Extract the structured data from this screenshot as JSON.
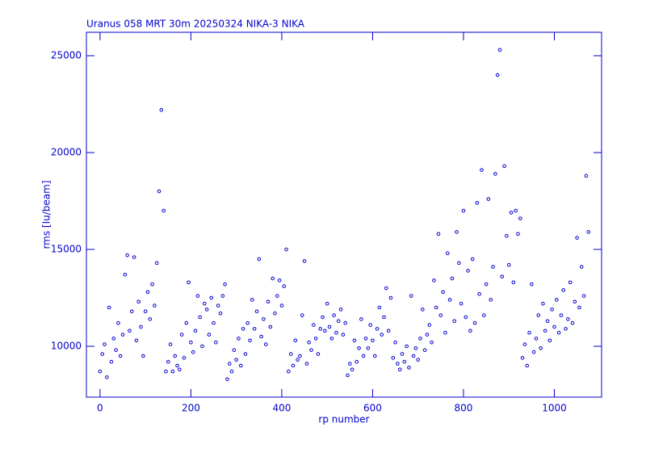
{
  "chart_data": {
    "type": "scatter",
    "title": "Uranus   058 MRT 30m  20250324 NIKA-3 NIKA",
    "x_label": "rp number",
    "y_label": "rms [Iu/beam]",
    "color": "#0000cc",
    "xlim": [
      -30,
      1104
    ],
    "ylim": [
      7375,
      26210
    ],
    "xticks": [
      0,
      200,
      400,
      600,
      800,
      1000
    ],
    "yticks": [
      10000,
      15000,
      20000,
      25000
    ],
    "x": [
      0,
      5,
      10,
      15,
      20,
      25,
      30,
      35,
      40,
      45,
      50,
      55,
      60,
      65,
      70,
      75,
      80,
      85,
      90,
      95,
      100,
      105,
      110,
      115,
      120,
      125,
      130,
      135,
      140,
      145,
      150,
      155,
      160,
      165,
      170,
      175,
      180,
      185,
      190,
      195,
      200,
      205,
      210,
      215,
      220,
      225,
      230,
      235,
      240,
      245,
      250,
      255,
      260,
      265,
      270,
      275,
      280,
      285,
      290,
      295,
      300,
      305,
      310,
      315,
      320,
      325,
      330,
      335,
      340,
      345,
      350,
      355,
      360,
      365,
      370,
      375,
      380,
      385,
      390,
      395,
      400,
      405,
      410,
      415,
      420,
      425,
      430,
      435,
      440,
      445,
      450,
      455,
      460,
      465,
      470,
      475,
      480,
      485,
      490,
      495,
      500,
      505,
      510,
      515,
      520,
      525,
      530,
      535,
      540,
      545,
      550,
      555,
      560,
      565,
      570,
      575,
      580,
      585,
      590,
      595,
      600,
      605,
      610,
      615,
      620,
      625,
      630,
      635,
      640,
      645,
      650,
      655,
      660,
      665,
      670,
      675,
      680,
      685,
      690,
      695,
      700,
      705,
      710,
      715,
      720,
      725,
      730,
      735,
      740,
      745,
      750,
      755,
      760,
      765,
      770,
      775,
      780,
      785,
      790,
      795,
      800,
      805,
      810,
      815,
      820,
      825,
      830,
      835,
      840,
      845,
      850,
      855,
      860,
      865,
      870,
      875,
      880,
      885,
      890,
      895,
      900,
      905,
      910,
      915,
      920,
      925,
      930,
      935,
      940,
      945,
      950,
      955,
      960,
      965,
      970,
      975,
      980,
      985,
      990,
      995,
      1000,
      1005,
      1010,
      1015,
      1020,
      1025,
      1030,
      1035,
      1040,
      1045,
      1050,
      1055,
      1060,
      1065,
      1070,
      1075
    ],
    "values": [
      8700,
      9600,
      10100,
      8400,
      12000,
      9200,
      10400,
      9800,
      11200,
      9500,
      10600,
      13700,
      14700,
      10800,
      11800,
      14600,
      10300,
      12300,
      11000,
      9500,
      11800,
      12800,
      11400,
      13200,
      12100,
      14300,
      18000,
      22200,
      17000,
      8700,
      9200,
      10100,
      8700,
      9500,
      9000,
      8800,
      10600,
      9400,
      11200,
      13300,
      10200,
      9700,
      10800,
      12600,
      11500,
      10000,
      12200,
      11900,
      10600,
      12500,
      11200,
      10200,
      12100,
      11700,
      12600,
      13200,
      8300,
      9100,
      8700,
      9800,
      9300,
      10400,
      9000,
      10900,
      9600,
      11200,
      10300,
      12400,
      10900,
      11800,
      14500,
      10500,
      11400,
      10100,
      12300,
      11000,
      13500,
      11700,
      12600,
      13400,
      12100,
      13100,
      15000,
      8700,
      9600,
      9000,
      10300,
      9300,
      9500,
      11600,
      14400,
      9100,
      10200,
      9800,
      11100,
      10400,
      9600,
      10900,
      11500,
      10800,
      12200,
      11000,
      10400,
      11600,
      10700,
      11300,
      11900,
      10600,
      11200,
      8500,
      9100,
      8800,
      10300,
      9200,
      9900,
      11400,
      9500,
      10400,
      9900,
      11100,
      10300,
      9500,
      10900,
      12000,
      10600,
      11500,
      13000,
      10800,
      12500,
      9400,
      10200,
      9100,
      8800,
      9600,
      9200,
      10000,
      8900,
      12600,
      9500,
      9900,
      9300,
      10400,
      11900,
      9800,
      10600,
      11100,
      10200,
      13400,
      12000,
      15800,
      11600,
      12800,
      10700,
      14800,
      12400,
      13500,
      11300,
      15900,
      14300,
      12200,
      17000,
      11500,
      13900,
      10800,
      14500,
      11200,
      17400,
      12700,
      19100,
      11600,
      13200,
      17600,
      12400,
      14100,
      18900,
      24000,
      25300,
      13600,
      19300,
      15700,
      14200,
      16900,
      13300,
      17000,
      15800,
      16600,
      9400,
      10100,
      9000,
      10700,
      13200,
      9700,
      10400,
      11600,
      9900,
      12200,
      10800,
      11300,
      10300,
      11900,
      11000,
      12400,
      10700,
      11600,
      12900,
      10900,
      11400,
      13300,
      11200,
      12300,
      15600,
      12000,
      14100,
      12600,
      18800,
      15900
    ]
  }
}
